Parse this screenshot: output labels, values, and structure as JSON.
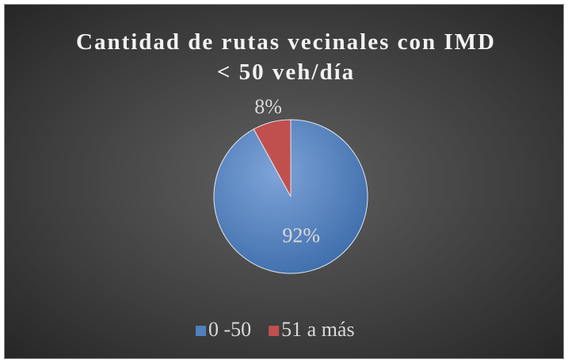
{
  "chart_data": {
    "type": "pie",
    "title": "Cantidad de rutas vecinales con IMD < 50 veh/día",
    "categories": [
      "0 -50",
      "51 a más"
    ],
    "values": [
      92,
      8
    ],
    "value_labels": [
      "92%",
      "8%"
    ],
    "colors": [
      "#4f81bd",
      "#c0504d"
    ],
    "legend": "bottom"
  }
}
